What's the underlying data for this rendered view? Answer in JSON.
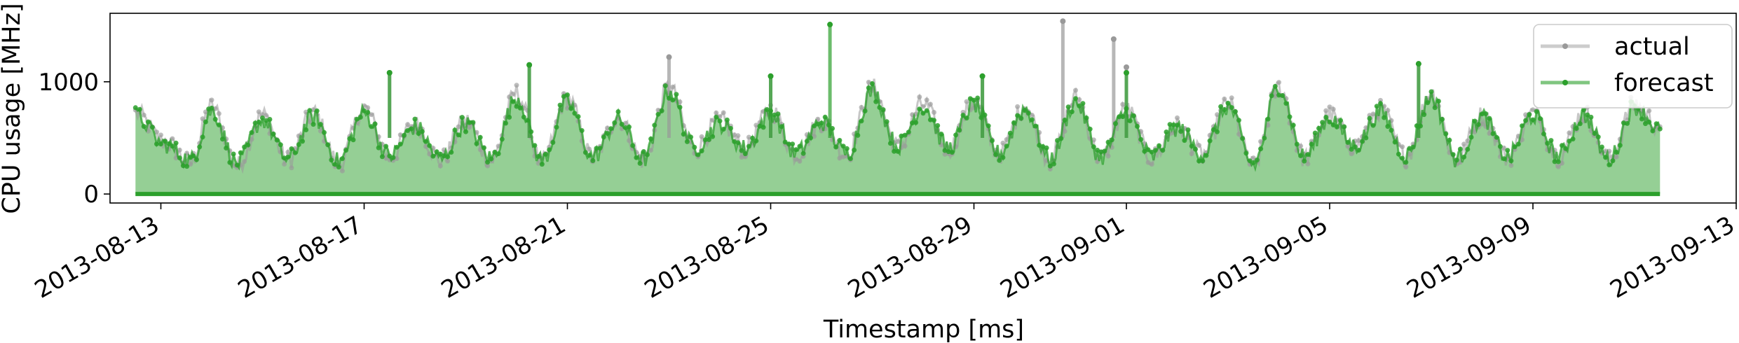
{
  "chart_data": {
    "type": "line",
    "xlabel": "Timestamp [ms]",
    "ylabel": "CPU usage [MHz]",
    "xlim": [
      "2013-08-12",
      "2013-09-13"
    ],
    "ylim": [
      -80,
      1610
    ],
    "yticks": [
      0,
      1000
    ],
    "xticks": [
      "2013-08-13",
      "2013-08-17",
      "2013-08-21",
      "2013-08-25",
      "2013-08-29",
      "2013-09-01",
      "2013-09-05",
      "2013-09-09",
      "2013-09-13"
    ],
    "x_range": [
      "2013-08-12T12:00",
      "2013-09-11T12:00"
    ],
    "grid": false,
    "legend_position": "top-right",
    "colors": {
      "actual": "#999999",
      "forecast": "#2ca02c"
    },
    "series": [
      {
        "name": "actual",
        "points": [
          [
            "2013-08-12T12:00",
            720
          ],
          [
            "2013-08-13T02:00",
            460
          ],
          [
            "2013-08-13T14:00",
            280
          ],
          [
            "2013-08-14T00:00",
            780
          ],
          [
            "2013-08-14T12:00",
            250
          ],
          [
            "2013-08-15T00:00",
            700
          ],
          [
            "2013-08-15T12:00",
            300
          ],
          [
            "2013-08-16T00:00",
            720
          ],
          [
            "2013-08-16T12:00",
            270
          ],
          [
            "2013-08-17T00:00",
            760
          ],
          [
            "2013-08-17T12:00",
            330
          ],
          [
            "2013-08-18T00:00",
            620
          ],
          [
            "2013-08-18T12:00",
            300
          ],
          [
            "2013-08-19T00:00",
            650
          ],
          [
            "2013-08-19T12:00",
            300
          ],
          [
            "2013-08-20T00:00",
            900
          ],
          [
            "2013-08-20T12:00",
            280
          ],
          [
            "2013-08-21T00:00",
            850
          ],
          [
            "2013-08-21T12:00",
            320
          ],
          [
            "2013-08-22T00:00",
            680
          ],
          [
            "2013-08-22T12:00",
            300
          ],
          [
            "2013-08-23T00:00",
            950
          ],
          [
            "2013-08-23T12:00",
            400
          ],
          [
            "2013-08-24T00:00",
            650
          ],
          [
            "2013-08-24T12:00",
            400
          ],
          [
            "2013-08-25T00:00",
            750
          ],
          [
            "2013-08-25T12:00",
            350
          ],
          [
            "2013-08-26T00:00",
            650
          ],
          [
            "2013-08-26T12:00",
            350
          ],
          [
            "2013-08-27T00:00",
            950
          ],
          [
            "2013-08-27T12:00",
            420
          ],
          [
            "2013-08-28T00:00",
            800
          ],
          [
            "2013-08-28T12:00",
            400
          ],
          [
            "2013-08-29T00:00",
            820
          ],
          [
            "2013-08-29T12:00",
            350
          ],
          [
            "2013-08-30T00:00",
            780
          ],
          [
            "2013-08-30T12:00",
            300
          ],
          [
            "2013-08-31T00:00",
            850
          ],
          [
            "2013-08-31T12:00",
            320
          ],
          [
            "2013-09-01T00:00",
            750
          ],
          [
            "2013-09-01T12:00",
            320
          ],
          [
            "2013-09-02T00:00",
            600
          ],
          [
            "2013-09-02T12:00",
            350
          ],
          [
            "2013-09-03T00:00",
            800
          ],
          [
            "2013-09-03T12:00",
            250
          ],
          [
            "2013-09-04T00:00",
            950
          ],
          [
            "2013-09-04T12:00",
            320
          ],
          [
            "2013-09-05T00:00",
            700
          ],
          [
            "2013-09-05T12:00",
            420
          ],
          [
            "2013-09-06T00:00",
            750
          ],
          [
            "2013-09-06T12:00",
            330
          ],
          [
            "2013-09-07T00:00",
            900
          ],
          [
            "2013-09-07T12:00",
            300
          ],
          [
            "2013-09-08T00:00",
            700
          ],
          [
            "2013-09-08T12:00",
            320
          ],
          [
            "2013-09-09T00:00",
            720
          ],
          [
            "2013-09-09T12:00",
            330
          ],
          [
            "2013-09-10T00:00",
            720
          ],
          [
            "2013-09-10T12:00",
            300
          ],
          [
            "2013-09-11T00:00",
            800
          ],
          [
            "2013-09-11T12:00",
            600
          ]
        ],
        "spikes": [
          [
            "2013-08-17T12:00",
            1080
          ],
          [
            "2013-08-20T06:00",
            1150
          ],
          [
            "2013-08-23T00:00",
            1220
          ],
          [
            "2013-08-25T00:00",
            1050
          ],
          [
            "2013-08-29T04:00",
            1050
          ],
          [
            "2013-08-30T18:00",
            1540
          ],
          [
            "2013-08-31T18:00",
            1380
          ],
          [
            "2013-09-01T00:00",
            1130
          ],
          [
            "2013-09-06T18:00",
            1160
          ]
        ]
      },
      {
        "name": "forecast",
        "points": [
          [
            "2013-08-12T12:00",
            700
          ],
          [
            "2013-08-13T02:00",
            440
          ],
          [
            "2013-08-13T14:00",
            300
          ],
          [
            "2013-08-14T00:00",
            740
          ],
          [
            "2013-08-14T12:00",
            270
          ],
          [
            "2013-08-15T00:00",
            660
          ],
          [
            "2013-08-15T12:00",
            310
          ],
          [
            "2013-08-16T00:00",
            690
          ],
          [
            "2013-08-16T12:00",
            290
          ],
          [
            "2013-08-17T00:00",
            720
          ],
          [
            "2013-08-17T12:00",
            340
          ],
          [
            "2013-08-18T00:00",
            600
          ],
          [
            "2013-08-18T12:00",
            310
          ],
          [
            "2013-08-19T00:00",
            630
          ],
          [
            "2013-08-19T12:00",
            320
          ],
          [
            "2013-08-20T00:00",
            860
          ],
          [
            "2013-08-20T12:00",
            300
          ],
          [
            "2013-08-21T00:00",
            820
          ],
          [
            "2013-08-21T12:00",
            330
          ],
          [
            "2013-08-22T00:00",
            660
          ],
          [
            "2013-08-22T12:00",
            310
          ],
          [
            "2013-08-23T00:00",
            920
          ],
          [
            "2013-08-23T12:00",
            410
          ],
          [
            "2013-08-24T00:00",
            630
          ],
          [
            "2013-08-24T12:00",
            410
          ],
          [
            "2013-08-25T00:00",
            720
          ],
          [
            "2013-08-25T12:00",
            360
          ],
          [
            "2013-08-26T00:00",
            640
          ],
          [
            "2013-08-26T12:00",
            360
          ],
          [
            "2013-08-27T00:00",
            920
          ],
          [
            "2013-08-27T12:00",
            430
          ],
          [
            "2013-08-28T00:00",
            780
          ],
          [
            "2013-08-28T12:00",
            410
          ],
          [
            "2013-08-29T00:00",
            800
          ],
          [
            "2013-08-29T12:00",
            360
          ],
          [
            "2013-08-30T00:00",
            760
          ],
          [
            "2013-08-30T12:00",
            310
          ],
          [
            "2013-08-31T00:00",
            820
          ],
          [
            "2013-08-31T12:00",
            330
          ],
          [
            "2013-09-01T00:00",
            730
          ],
          [
            "2013-09-01T12:00",
            330
          ],
          [
            "2013-09-02T00:00",
            590
          ],
          [
            "2013-09-02T12:00",
            360
          ],
          [
            "2013-09-03T00:00",
            780
          ],
          [
            "2013-09-03T12:00",
            260
          ],
          [
            "2013-09-04T00:00",
            960
          ],
          [
            "2013-09-04T12:00",
            330
          ],
          [
            "2013-09-05T00:00",
            680
          ],
          [
            "2013-09-05T12:00",
            430
          ],
          [
            "2013-09-06T00:00",
            730
          ],
          [
            "2013-09-06T12:00",
            340
          ],
          [
            "2013-09-07T00:00",
            870
          ],
          [
            "2013-09-07T12:00",
            310
          ],
          [
            "2013-09-08T00:00",
            690
          ],
          [
            "2013-09-08T12:00",
            330
          ],
          [
            "2013-09-09T00:00",
            700
          ],
          [
            "2013-09-09T12:00",
            340
          ],
          [
            "2013-09-10T00:00",
            700
          ],
          [
            "2013-09-10T12:00",
            310
          ],
          [
            "2013-09-11T00:00",
            780
          ],
          [
            "2013-09-11T12:00",
            580
          ]
        ],
        "spikes": [
          [
            "2013-08-17T12:00",
            1080
          ],
          [
            "2013-08-20T06:00",
            1150
          ],
          [
            "2013-08-25T00:00",
            1050
          ],
          [
            "2013-08-26T04:00",
            1510
          ],
          [
            "2013-08-29T04:00",
            1050
          ],
          [
            "2013-09-01T00:00",
            1080
          ],
          [
            "2013-09-06T18:00",
            1160
          ]
        ],
        "baseline": 0
      }
    ]
  }
}
